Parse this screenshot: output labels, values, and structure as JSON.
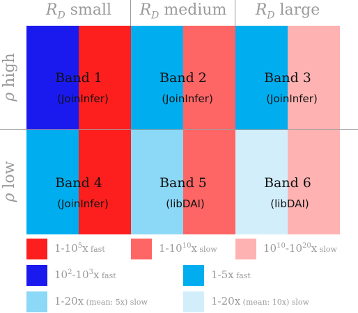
{
  "columns": [
    {
      "r": "R",
      "sub": "D",
      "label": "small"
    },
    {
      "r": "R",
      "sub": "D",
      "label": "medium"
    },
    {
      "r": "R",
      "sub": "D",
      "label": "large"
    }
  ],
  "rows": [
    {
      "rho": "ρ",
      "label": "high"
    },
    {
      "rho": "ρ",
      "label": "low"
    }
  ],
  "bands": [
    {
      "title": "Band 1",
      "sub": "(JoinInfer)"
    },
    {
      "title": "Band 2",
      "sub": "(JoinInfer)"
    },
    {
      "title": "Band 3",
      "sub": "(JoinInfer)"
    },
    {
      "title": "Band 4",
      "sub": "(JoinInfer)"
    },
    {
      "title": "Band 5",
      "sub": "(libDAI)"
    },
    {
      "title": "Band 6",
      "sub": "(libDAI)"
    }
  ],
  "colors": {
    "red_strong": "#fd1e1e",
    "red_medium": "#fe6565",
    "red_light": "#feb2b2",
    "blue_dark": "#1a1aee",
    "cyan": "#00aeef",
    "cyan_light": "#8cd8f7",
    "cyan_pale": "#d2eefb"
  },
  "legend": [
    {
      "pre": "1-10",
      "sup": "5",
      "mid": "x",
      "small": " fast",
      "color": "#fd1e1e"
    },
    {
      "pre": "1-10",
      "sup": "10",
      "mid": "x",
      "small": " slow",
      "color": "#fe6565"
    },
    {
      "pre": "10",
      "sup": "10",
      "pre2": "-10",
      "sup2": "20",
      "mid": "x",
      "small": " slow",
      "color": "#feb2b2"
    },
    {
      "pre": "10",
      "sup": "2",
      "pre2": "-10",
      "sup2": "3",
      "mid": "x",
      "small": " fast",
      "color": "#1a1aee"
    },
    {
      "pre": "1-5x",
      "small": " fast",
      "color": "#00aeef"
    },
    {
      "pre": "1-20x",
      "small": " (mean: 5x) slow",
      "color": "#8cd8f7"
    },
    {
      "pre": "1-20x",
      "small": " (mean: 10x) slow",
      "color": "#d2eefb"
    }
  ]
}
